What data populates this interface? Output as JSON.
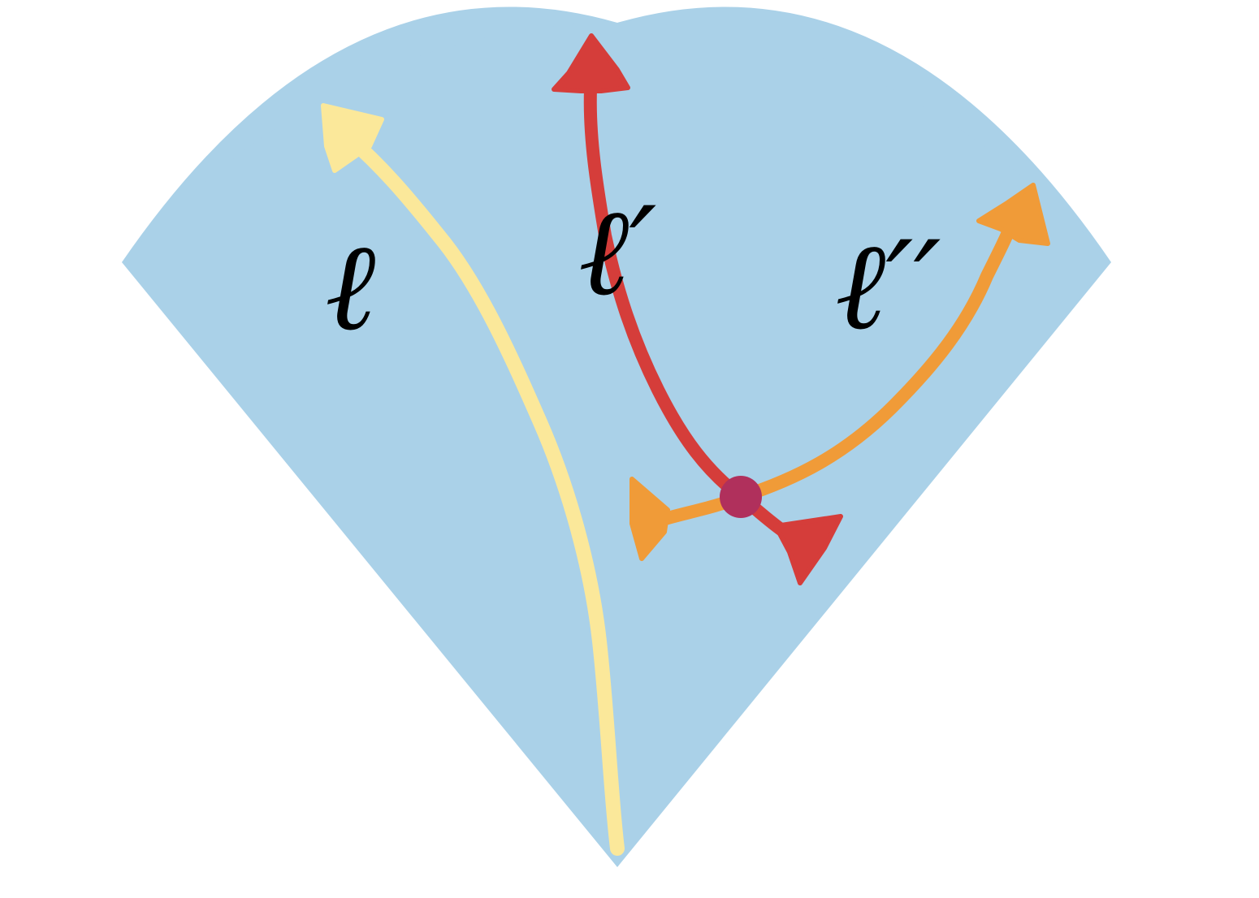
{
  "diagram": {
    "labels": {
      "l": "ℓ",
      "l_prime": "ℓ′",
      "l_double_prime": "ℓ′′"
    },
    "colors": {
      "cone": "#aad1e8",
      "worldline_l": "#fbe89a",
      "worldline_l_prime": "#d53d3a",
      "worldline_l_double_prime": "#f09b38",
      "vertex": "#b0305c"
    }
  }
}
